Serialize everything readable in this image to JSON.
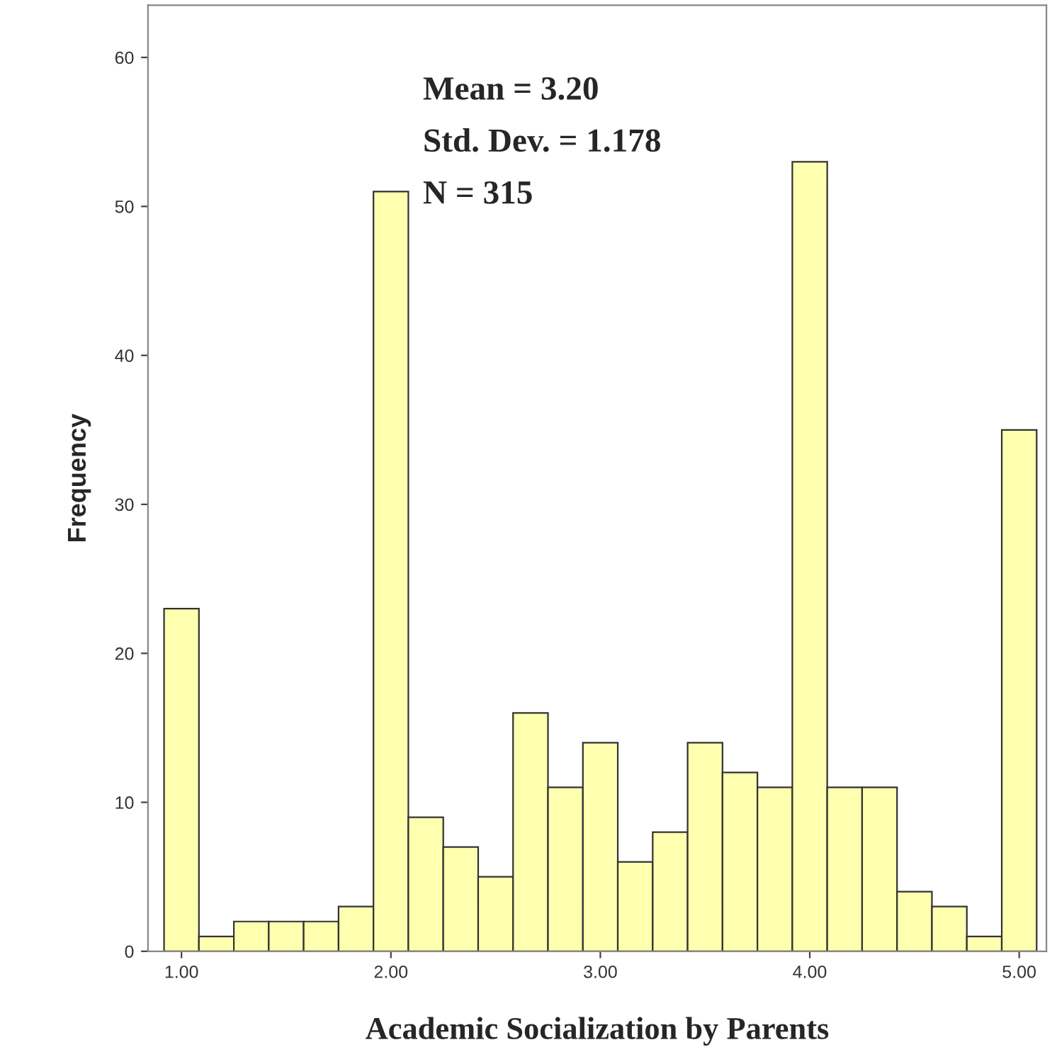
{
  "chart_data": {
    "type": "histogram",
    "xlabel": "Academic Socialization by Parents",
    "ylabel": "Frequency",
    "bins": [
      0.9167,
      1.0833,
      1.25,
      1.4167,
      1.5833,
      1.75,
      1.9167,
      2.0833,
      2.25,
      2.4167,
      2.5833,
      2.75,
      2.9167,
      3.0833,
      3.25,
      3.4167,
      3.5833,
      3.75,
      3.9167,
      4.0833,
      4.25,
      4.4167,
      4.5833,
      4.75,
      4.9167,
      5.0833
    ],
    "values": [
      23,
      1,
      2,
      2,
      2,
      3,
      51,
      9,
      7,
      5,
      16,
      11,
      14,
      6,
      8,
      14,
      12,
      11,
      53,
      11,
      11,
      4,
      3,
      1,
      35
    ],
    "color": "#ffffb0",
    "xlim": [
      0.84,
      5.13
    ],
    "xticks": [
      {
        "value": 1,
        "label": "1.00"
      },
      {
        "value": 2,
        "label": "2.00"
      },
      {
        "value": 3,
        "label": "3.00"
      },
      {
        "value": 4,
        "label": "4.00"
      },
      {
        "value": 5,
        "label": "5.00"
      }
    ],
    "ylim": [
      0,
      63.5
    ],
    "yticks": [
      0,
      10,
      20,
      30,
      40,
      50,
      60
    ],
    "annotations": [
      "Mean = 3.20",
      "Std. Dev. = 1.178",
      "N = 315"
    ]
  }
}
